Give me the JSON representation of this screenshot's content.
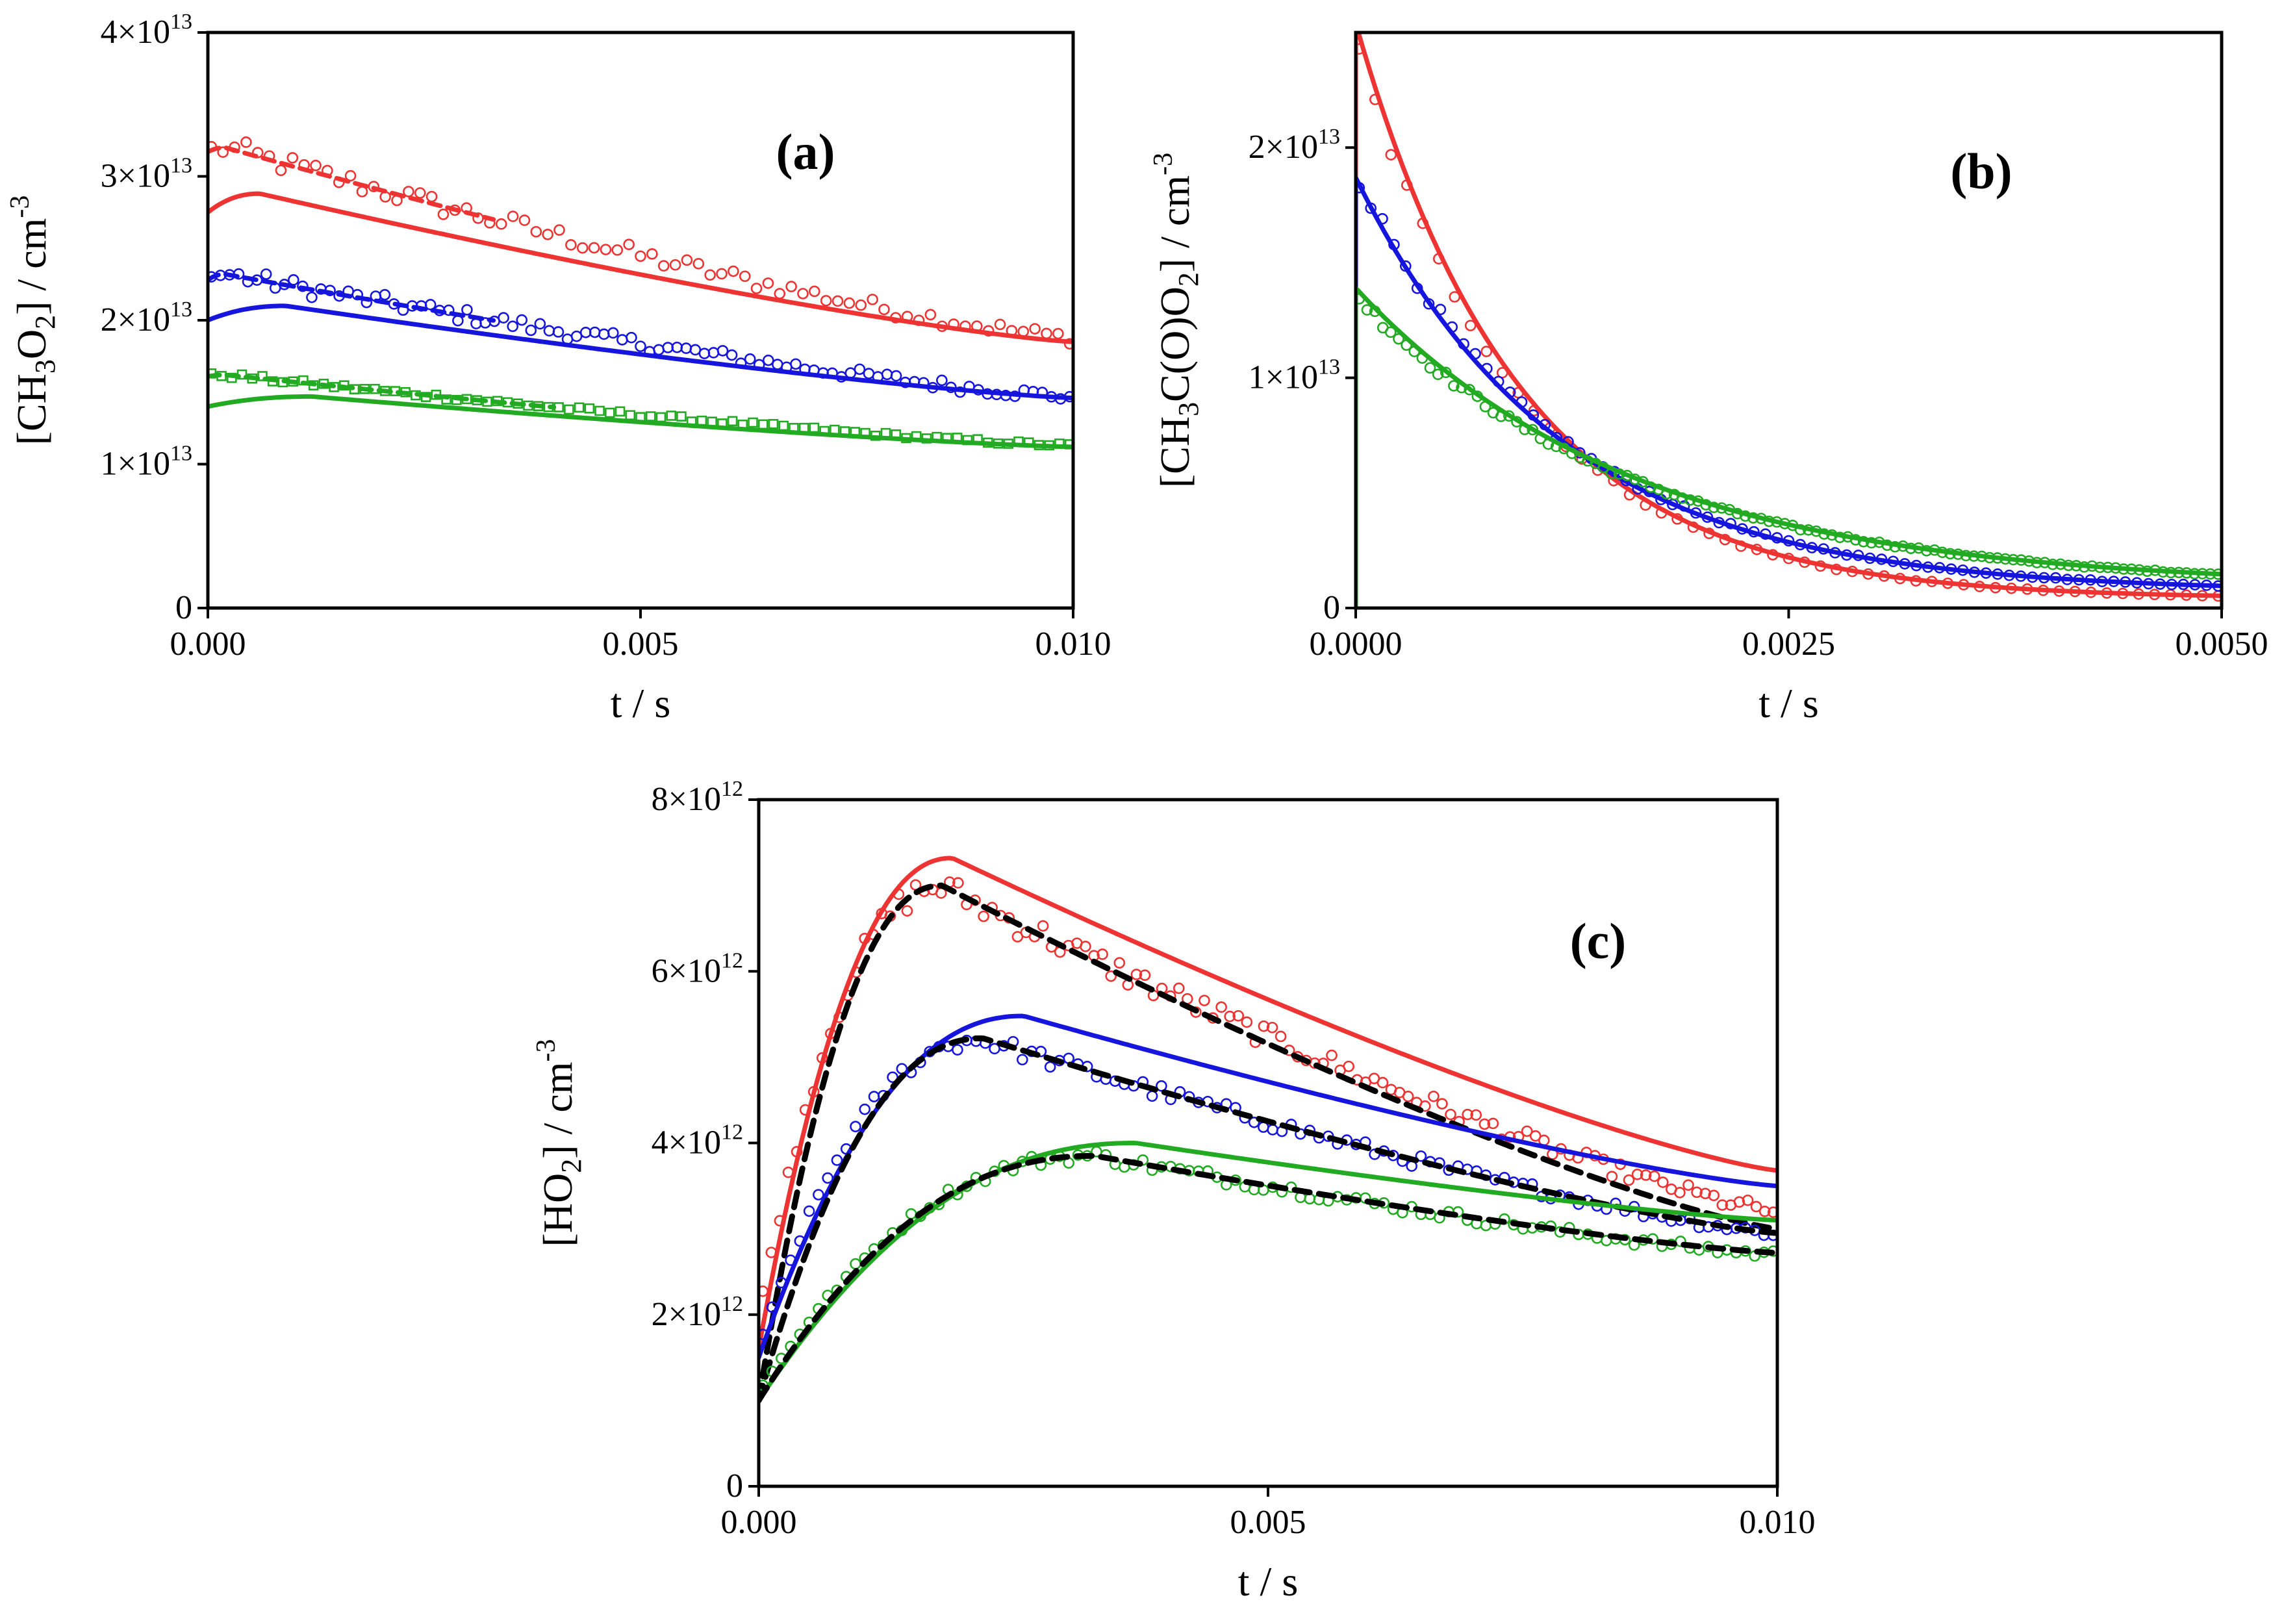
{
  "colors": {
    "red": "#ee3333",
    "blue": "#1515dd",
    "green": "#22aa22",
    "black": "#000000"
  },
  "chart_data": [
    {
      "type": "scatter",
      "panel_label": "(a)",
      "xlabel": "t / s",
      "ylabel_parts": [
        "[CH",
        "3",
        "O",
        "2",
        "] / cm",
        "-3"
      ],
      "xlim": [
        0,
        0.01
      ],
      "ylim": [
        0,
        40000000000000.0
      ],
      "x_ticks": [
        0,
        0.005,
        0.01
      ],
      "x_tick_labels": [
        "0.000",
        "0.005",
        "0.010"
      ],
      "y_ticks": [
        0,
        10000000000000.0,
        20000000000000.0,
        30000000000000.0,
        40000000000000.0
      ],
      "y_tick_labels": [
        {
          "base": "0",
          "exp": ""
        },
        {
          "base": "1×10",
          "exp": "13"
        },
        {
          "base": "2×10",
          "exp": "13"
        },
        {
          "base": "3×10",
          "exp": "13"
        },
        {
          "base": "4×10",
          "exp": "13"
        }
      ],
      "series": [
        {
          "name": "red-model-solid",
          "color": "red",
          "style": "solid",
          "fn": "rise_decay",
          "params": {
            "y0": 27500000000000.0,
            "yp": 28800000000000.0,
            "tp": 0.0006,
            "yend": 18500000000000.0
          }
        },
        {
          "name": "red-model-dashed",
          "color": "red",
          "style": "dashed",
          "fn": "rise_decay",
          "params": {
            "y0": 31700000000000.0,
            "yp": 32000000000000.0,
            "tp": 0.0002,
            "yend": 18800000000000.0
          },
          "x_end": 0.0033
        },
        {
          "name": "red-data",
          "color": "red",
          "style": "circle",
          "fn": "rise_decay",
          "params": {
            "y0": 31700000000000.0,
            "yp": 32000000000000.0,
            "tp": 0.0002,
            "yend": 18800000000000.0
          },
          "n": 75,
          "noise": 0.025
        },
        {
          "name": "blue-model-solid",
          "color": "blue",
          "style": "solid",
          "fn": "rise_decay",
          "params": {
            "y0": 20000000000000.0,
            "yp": 21000000000000.0,
            "tp": 0.0009,
            "yend": 14600000000000.0
          }
        },
        {
          "name": "blue-model-dashed",
          "color": "blue",
          "style": "dashed",
          "fn": "rise_decay",
          "params": {
            "y0": 22800000000000.0,
            "yp": 23200000000000.0,
            "tp": 0.0002,
            "yend": 14700000000000.0
          },
          "x_end": 0.0033
        },
        {
          "name": "blue-data",
          "color": "blue",
          "style": "circle",
          "fn": "rise_decay",
          "params": {
            "y0": 22800000000000.0,
            "yp": 23200000000000.0,
            "tp": 0.0002,
            "yend": 14700000000000.0
          },
          "n": 95,
          "noise": 0.025
        },
        {
          "name": "green-model-solid",
          "color": "green",
          "style": "solid",
          "fn": "rise_decay",
          "params": {
            "y0": 14000000000000.0,
            "yp": 14700000000000.0,
            "tp": 0.0012,
            "yend": 11200000000000.0
          }
        },
        {
          "name": "green-model-dashed",
          "color": "green",
          "style": "dashed",
          "fn": "rise_decay",
          "params": {
            "y0": 16100000000000.0,
            "yp": 16200000000000.0,
            "tp": 0.0002,
            "yend": 11300000000000.0
          },
          "x_end": 0.004
        },
        {
          "name": "green-data",
          "color": "green",
          "style": "square",
          "fn": "rise_decay",
          "params": {
            "y0": 16100000000000.0,
            "yp": 16200000000000.0,
            "tp": 0.0002,
            "yend": 11300000000000.0
          },
          "n": 85,
          "noise": 0.012
        }
      ]
    },
    {
      "type": "scatter",
      "panel_label": "(b)",
      "xlabel": "t / s",
      "ylabel_parts": [
        "[CH",
        "3",
        "C(O)O",
        "2",
        "] / cm",
        "-3"
      ],
      "xlim": [
        0,
        0.005
      ],
      "ylim": [
        0,
        25000000000000.0
      ],
      "x_ticks": [
        0,
        0.0025,
        0.005
      ],
      "x_tick_labels": [
        "0.0000",
        "0.0025",
        "0.0050"
      ],
      "y_ticks": [
        0,
        10000000000000.0,
        20000000000000.0
      ],
      "y_tick_labels": [
        {
          "base": "0",
          "exp": ""
        },
        {
          "base": "1×10",
          "exp": "13"
        },
        {
          "base": "2×10",
          "exp": "13"
        }
      ],
      "series": [
        {
          "name": "red-model",
          "color": "red",
          "style": "solid",
          "fn": "exp_decay",
          "params": {
            "a": 25000000000000.0,
            "tau": 0.00095,
            "c": 400000000000.0
          },
          "vertical_start": true
        },
        {
          "name": "red-data",
          "color": "red",
          "style": "circle",
          "fn": "exp_decay",
          "params": {
            "a": 24200000000000.0,
            "tau": 0.00095,
            "c": 400000000000.0
          },
          "n": 55,
          "noise": 0.02
        },
        {
          "name": "blue-model",
          "color": "blue",
          "style": "solid",
          "fn": "exp_decay",
          "params": {
            "a": 18000000000000.0,
            "tau": 0.00118,
            "c": 700000000000.0
          },
          "vertical_start": true
        },
        {
          "name": "blue-data",
          "color": "blue",
          "style": "circle",
          "fn": "exp_decay",
          "params": {
            "a": 18200000000000.0,
            "tau": 0.00118,
            "c": 700000000000.0
          },
          "n": 75,
          "noise": 0.02
        },
        {
          "name": "green-model",
          "color": "green",
          "style": "solid",
          "fn": "exp_decay",
          "params": {
            "a": 13000000000000.0,
            "tau": 0.0016,
            "c": 900000000000.0
          },
          "vertical_start": true
        },
        {
          "name": "green-data",
          "color": "green",
          "style": "circle",
          "fn": "exp_decay",
          "params": {
            "a": 12700000000000.0,
            "tau": 0.0016,
            "c": 900000000000.0
          },
          "n": 110,
          "noise": 0.02
        }
      ]
    },
    {
      "type": "scatter",
      "panel_label": "(c)",
      "xlabel": "t / s",
      "ylabel_parts": [
        "[HO",
        "2",
        "] / cm",
        "-3"
      ],
      "xlim": [
        0,
        0.01
      ],
      "ylim": [
        0,
        8000000000000.0
      ],
      "x_ticks": [
        0,
        0.005,
        0.01
      ],
      "x_tick_labels": [
        "0.000",
        "0.005",
        "0.010"
      ],
      "y_ticks": [
        0,
        2000000000000.0,
        4000000000000.0,
        6000000000000.0,
        8000000000000.0
      ],
      "y_tick_labels": [
        {
          "base": "0",
          "exp": ""
        },
        {
          "base": "2×10",
          "exp": "12"
        },
        {
          "base": "4×10",
          "exp": "12"
        },
        {
          "base": "6×10",
          "exp": "12"
        },
        {
          "base": "8×10",
          "exp": "12"
        }
      ],
      "series": [
        {
          "name": "red-model",
          "color": "red",
          "style": "solid",
          "fn": "rise_decay",
          "params": {
            "y0": 1600000000000.0,
            "yp": 7320000000000.0,
            "tp": 0.0019,
            "yend": 3680000000000.0
          }
        },
        {
          "name": "red-data",
          "color": "red",
          "style": "circle",
          "fn": "rise_decay",
          "params": {
            "y0": 2000000000000.0,
            "yp": 6980000000000.0,
            "tp": 0.0018,
            "yend": 3200000000000.0
          },
          "n": 120,
          "noise": 0.025
        },
        {
          "name": "red-fit",
          "color": "black",
          "style": "dashed",
          "fn": "rise_decay",
          "params": {
            "y0": 1000000000000.0,
            "yp": 7000000000000.0,
            "tp": 0.0018,
            "yend": 3000000000000.0
          },
          "width": 9
        },
        {
          "name": "blue-model",
          "color": "blue",
          "style": "solid",
          "fn": "rise_decay",
          "params": {
            "y0": 1500000000000.0,
            "yp": 5480000000000.0,
            "tp": 0.0026,
            "yend": 3500000000000.0
          }
        },
        {
          "name": "blue-data",
          "color": "blue",
          "style": "circle",
          "fn": "rise_decay",
          "params": {
            "y0": 1600000000000.0,
            "yp": 5200000000000.0,
            "tp": 0.0022,
            "yend": 2950000000000.0
          },
          "n": 110,
          "noise": 0.02
        },
        {
          "name": "blue-fit",
          "color": "black",
          "style": "dashed",
          "fn": "rise_decay",
          "params": {
            "y0": 1000000000000.0,
            "yp": 5220000000000.0,
            "tp": 0.0022,
            "yend": 2950000000000.0
          },
          "width": 9
        },
        {
          "name": "green-model",
          "color": "green",
          "style": "solid",
          "fn": "rise_decay",
          "params": {
            "y0": 1000000000000.0,
            "yp": 4000000000000.0,
            "tp": 0.0037,
            "yend": 3100000000000.0
          }
        },
        {
          "name": "green-data",
          "color": "green",
          "style": "circle",
          "fn": "rise_decay",
          "params": {
            "y0": 1100000000000.0,
            "yp": 3850000000000.0,
            "tp": 0.0033,
            "yend": 2700000000000.0
          },
          "n": 110,
          "noise": 0.02
        },
        {
          "name": "green-fit",
          "color": "black",
          "style": "dashed",
          "fn": "rise_decay",
          "params": {
            "y0": 1000000000000.0,
            "yp": 3850000000000.0,
            "tp": 0.0033,
            "yend": 2720000000000.0
          },
          "width": 9
        }
      ]
    }
  ]
}
